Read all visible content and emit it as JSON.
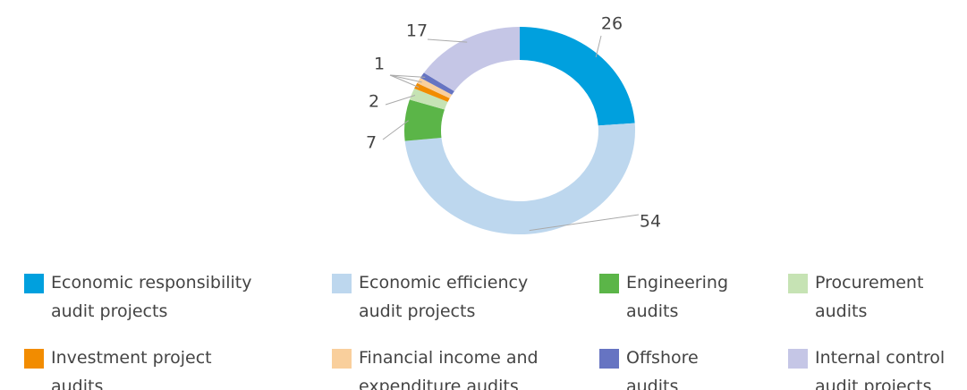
{
  "chart_data": {
    "type": "donut",
    "categories": [
      "Economic responsibility audit projects",
      "Economic efficiency audit projects",
      "Engineering audits",
      "Procurement audits",
      "Investment project audits",
      "Financial income and expenditure audits",
      "Offshore audits",
      "Internal control audit projects"
    ],
    "values": [
      26,
      54,
      7,
      2,
      1,
      1,
      1,
      17
    ],
    "colors": [
      "#00a0de",
      "#bdd7ee",
      "#5bb548",
      "#c6e3b4",
      "#f28c00",
      "#f9cf9c",
      "#6674c2",
      "#c5c6e6"
    ]
  }
}
